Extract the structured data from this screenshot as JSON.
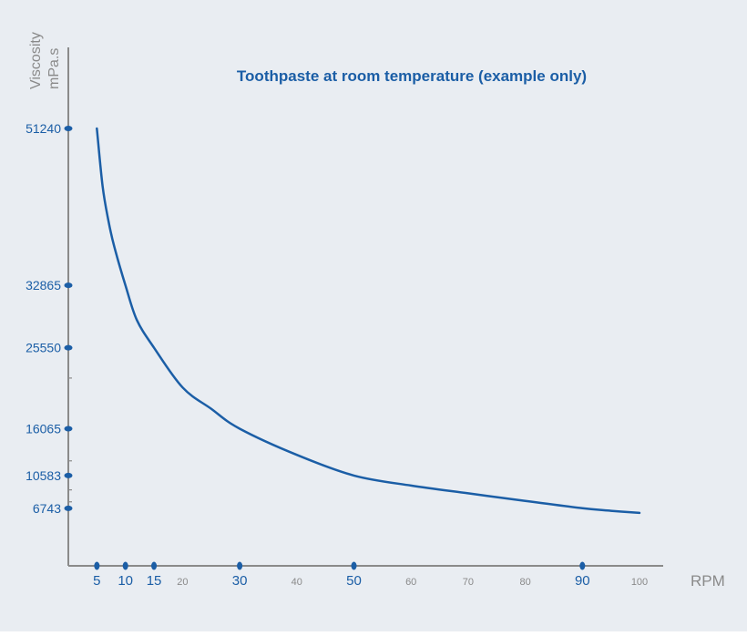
{
  "colors": {
    "background": "#e9edf2",
    "accent": "#1b5ea6",
    "axis": "#8a8a8a",
    "minor_label": "#8a8a8a"
  },
  "chart_data": {
    "type": "line",
    "title": "Toothpaste at room temperature (example only)",
    "ylabel_line1": "Viscosity",
    "ylabel_line2": "mPa.s",
    "xlabel": "RPM",
    "xlim": [
      0,
      108
    ],
    "ylim": [
      0,
      60500
    ],
    "grid": false,
    "x_ticks_highlight": [
      5,
      10,
      15,
      30,
      50,
      90
    ],
    "x_ticks_minor": [
      20,
      40,
      60,
      70,
      80,
      100
    ],
    "y_ticks_highlight": [
      51240,
      32865,
      25550,
      16065,
      10583,
      6743
    ],
    "series": [
      {
        "x": [
          5,
          6,
          7,
          8,
          10,
          12,
          15,
          20,
          25,
          30,
          40,
          50,
          60,
          70,
          80,
          90,
          95,
          100
        ],
        "y": [
          51240,
          44500,
          40500,
          37500,
          32865,
          28800,
          25550,
          20900,
          18400,
          16065,
          13000,
          10583,
          9400,
          8500,
          7600,
          6743,
          6450,
          6200
        ]
      }
    ]
  }
}
